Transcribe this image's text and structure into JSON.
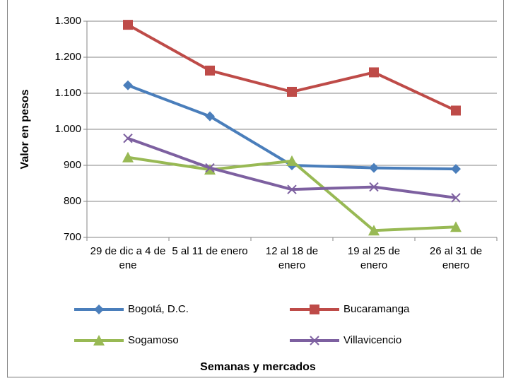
{
  "chart_data": {
    "type": "line",
    "y_label": "Valor en pesos",
    "x_label": "Semanas y mercados",
    "categories": [
      "29 de dic a 4 de ene",
      "5 al 11 de enero",
      "12 al 18 de enero",
      "19 al 25 de enero",
      "26 al 31 de enero"
    ],
    "series": [
      {
        "name": "Bogotá, D.C.",
        "color": "#4a7ebb",
        "marker": "diamond",
        "values": [
          1122,
          1036,
          900,
          893,
          890
        ]
      },
      {
        "name": "Bucaramanga",
        "color": "#be4b48",
        "marker": "square",
        "values": [
          1290,
          1163,
          1104,
          1158,
          1052
        ]
      },
      {
        "name": "Sogamoso",
        "color": "#98b954",
        "marker": "triangle",
        "values": [
          922,
          888,
          912,
          719,
          729
        ]
      },
      {
        "name": "Villavicencio",
        "color": "#7d60a0",
        "marker": "x",
        "values": [
          975,
          893,
          833,
          840,
          810
        ]
      }
    ],
    "ylim": [
      700,
      1300
    ],
    "yticks": [
      700,
      800,
      900,
      {
        "value": 1000,
        "label": "1.000"
      },
      {
        "value": 1100,
        "label": "1.100"
      },
      {
        "value": 1200,
        "label": "1.200"
      },
      {
        "value": 1300,
        "label": "1.300"
      }
    ],
    "grid": true,
    "legend": "bottom"
  }
}
